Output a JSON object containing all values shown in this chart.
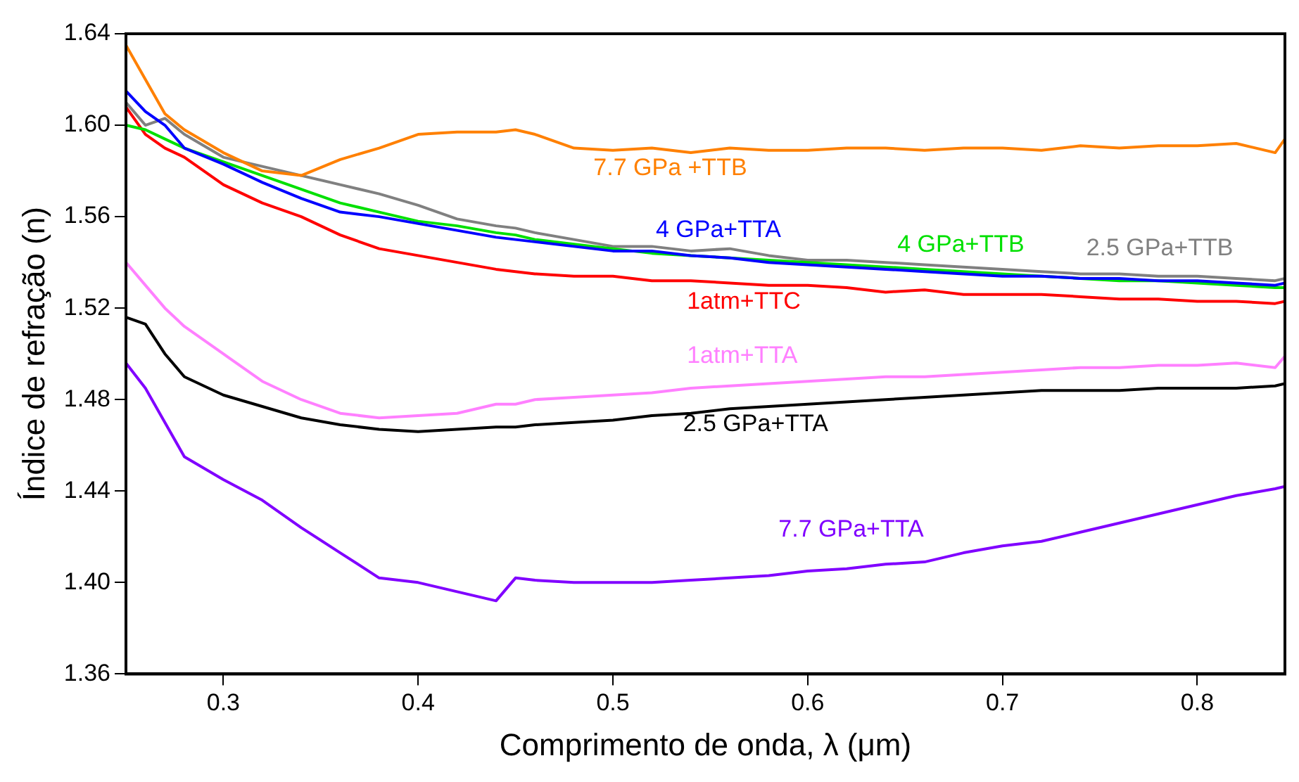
{
  "chart_data": {
    "type": "line",
    "xlabel": "Comprimento de onda, λ (μm)",
    "ylabel": "Índice de refração (n)",
    "x": [
      0.25,
      0.26,
      0.27,
      0.28,
      0.3,
      0.32,
      0.34,
      0.36,
      0.38,
      0.4,
      0.42,
      0.44,
      0.45,
      0.46,
      0.48,
      0.5,
      0.52,
      0.54,
      0.56,
      0.58,
      0.6,
      0.62,
      0.64,
      0.66,
      0.68,
      0.7,
      0.72,
      0.74,
      0.76,
      0.78,
      0.8,
      0.82,
      0.84,
      0.845
    ],
    "xlim": [
      0.25,
      0.845
    ],
    "xticks": [
      0.3,
      0.4,
      0.5,
      0.6,
      0.7,
      0.8
    ],
    "ylim": [
      1.36,
      1.64
    ],
    "yticks": [
      1.36,
      {
        "value": 1.4,
        "label": "1.40"
      },
      1.44,
      1.48,
      1.52,
      1.56,
      {
        "value": 1.6,
        "label": "1.60"
      },
      1.64
    ],
    "grid": false,
    "legend": false,
    "marker": "none",
    "line_style": "solid",
    "series": [
      {
        "name": "7.7 GPa +TTB",
        "color": "#ff8000",
        "values": [
          1.635,
          1.62,
          1.605,
          1.598,
          1.588,
          1.58,
          1.578,
          1.585,
          1.59,
          1.596,
          1.597,
          1.597,
          1.598,
          1.596,
          1.59,
          1.589,
          1.59,
          1.588,
          1.59,
          1.589,
          1.589,
          1.59,
          1.59,
          1.589,
          1.59,
          1.59,
          1.589,
          1.591,
          1.59,
          1.591,
          1.591,
          1.592,
          1.588,
          1.594
        ]
      },
      {
        "name": "4 GPa+TTA",
        "color": "#0000ff",
        "values": [
          1.615,
          1.606,
          1.6,
          1.59,
          1.583,
          1.575,
          1.568,
          1.562,
          1.56,
          1.557,
          1.554,
          1.551,
          1.55,
          1.549,
          1.547,
          1.545,
          1.545,
          1.543,
          1.542,
          1.54,
          1.539,
          1.538,
          1.537,
          1.536,
          1.535,
          1.534,
          1.534,
          1.533,
          1.533,
          1.532,
          1.532,
          1.531,
          1.53,
          1.531
        ]
      },
      {
        "name": "4 GPa+TTB",
        "color": "#00e000",
        "values": [
          1.6,
          1.598,
          1.594,
          1.59,
          1.584,
          1.578,
          1.572,
          1.566,
          1.562,
          1.558,
          1.556,
          1.553,
          1.552,
          1.55,
          1.548,
          1.546,
          1.544,
          1.543,
          1.542,
          1.541,
          1.54,
          1.539,
          1.538,
          1.537,
          1.536,
          1.535,
          1.534,
          1.533,
          1.532,
          1.532,
          1.531,
          1.53,
          1.529,
          1.529
        ]
      },
      {
        "name": "2.5 GPa+TTB",
        "color": "#808080",
        "values": [
          1.61,
          1.6,
          1.603,
          1.596,
          1.586,
          1.582,
          1.578,
          1.574,
          1.57,
          1.565,
          1.559,
          1.556,
          1.555,
          1.553,
          1.55,
          1.547,
          1.547,
          1.545,
          1.546,
          1.543,
          1.541,
          1.541,
          1.54,
          1.539,
          1.538,
          1.537,
          1.536,
          1.535,
          1.535,
          1.534,
          1.534,
          1.533,
          1.532,
          1.533
        ]
      },
      {
        "name": "1atm+TTC",
        "color": "#ff0000",
        "values": [
          1.608,
          1.596,
          1.59,
          1.586,
          1.574,
          1.566,
          1.56,
          1.552,
          1.546,
          1.543,
          1.54,
          1.537,
          1.536,
          1.535,
          1.534,
          1.534,
          1.532,
          1.532,
          1.531,
          1.53,
          1.53,
          1.529,
          1.527,
          1.528,
          1.526,
          1.526,
          1.526,
          1.525,
          1.524,
          1.524,
          1.523,
          1.523,
          1.522,
          1.523
        ]
      },
      {
        "name": "1atm+TTA",
        "color": "#ff80ff",
        "values": [
          1.54,
          1.53,
          1.52,
          1.512,
          1.5,
          1.488,
          1.48,
          1.474,
          1.472,
          1.473,
          1.474,
          1.478,
          1.478,
          1.48,
          1.481,
          1.482,
          1.483,
          1.485,
          1.486,
          1.487,
          1.488,
          1.489,
          1.49,
          1.49,
          1.491,
          1.492,
          1.493,
          1.494,
          1.494,
          1.495,
          1.495,
          1.496,
          1.494,
          1.499
        ]
      },
      {
        "name": "2.5 GPa+TTA",
        "color": "#000000",
        "values": [
          1.516,
          1.513,
          1.5,
          1.49,
          1.482,
          1.477,
          1.472,
          1.469,
          1.467,
          1.466,
          1.467,
          1.468,
          1.468,
          1.469,
          1.47,
          1.471,
          1.473,
          1.474,
          1.476,
          1.477,
          1.478,
          1.479,
          1.48,
          1.481,
          1.482,
          1.483,
          1.484,
          1.484,
          1.484,
          1.485,
          1.485,
          1.485,
          1.486,
          1.487
        ]
      },
      {
        "name": "7.7 GPa+TTA",
        "color": "#8000ff",
        "values": [
          1.496,
          1.485,
          1.47,
          1.455,
          1.445,
          1.436,
          1.424,
          1.413,
          1.402,
          1.4,
          1.396,
          1.392,
          1.402,
          1.401,
          1.4,
          1.4,
          1.4,
          1.401,
          1.402,
          1.403,
          1.405,
          1.406,
          1.408,
          1.409,
          1.413,
          1.416,
          1.418,
          1.422,
          1.426,
          1.43,
          1.434,
          1.438,
          1.441,
          1.442
        ]
      }
    ]
  }
}
